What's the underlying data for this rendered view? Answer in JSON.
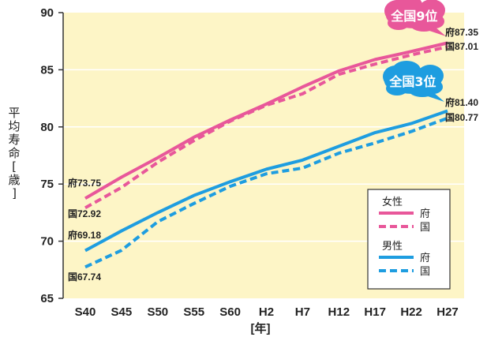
{
  "chart_data": {
    "type": "line",
    "categories": [
      "S40",
      "S45",
      "S50",
      "S55",
      "S60",
      "H2",
      "H7",
      "H12",
      "H17",
      "H22",
      "H27"
    ],
    "ylabel": "平均寿命[歳]",
    "xlabel": "[年]",
    "ylim": [
      65,
      90
    ],
    "yticks": [
      65,
      70,
      75,
      80,
      85,
      90
    ],
    "grid": true,
    "series": [
      {
        "name": "女性 府",
        "group": "female",
        "style": "solid",
        "color": "#e8579a",
        "values": [
          73.75,
          75.6,
          77.3,
          79.1,
          80.6,
          82.0,
          83.5,
          84.9,
          85.9,
          86.6,
          87.35
        ]
      },
      {
        "name": "女性 国",
        "group": "female",
        "style": "dashed",
        "color": "#e8579a",
        "values": [
          72.92,
          74.7,
          76.9,
          78.8,
          80.5,
          81.9,
          82.9,
          84.6,
          85.5,
          86.3,
          87.01
        ]
      },
      {
        "name": "男性 府",
        "group": "male",
        "style": "solid",
        "color": "#1e9de0",
        "values": [
          69.18,
          70.9,
          72.5,
          74.0,
          75.2,
          76.3,
          77.1,
          78.3,
          79.5,
          80.3,
          81.4
        ]
      },
      {
        "name": "男性 国",
        "group": "male",
        "style": "dashed",
        "color": "#1e9de0",
        "values": [
          67.74,
          69.2,
          71.7,
          73.3,
          74.8,
          75.9,
          76.4,
          77.7,
          78.6,
          79.6,
          80.77
        ]
      }
    ],
    "annotations": [
      {
        "text": "府73.75",
        "series": 0,
        "point": 0
      },
      {
        "text": "国72.92",
        "series": 1,
        "point": 0
      },
      {
        "text": "府69.18",
        "series": 2,
        "point": 0
      },
      {
        "text": "国67.74",
        "series": 3,
        "point": 0
      },
      {
        "text": "府87.35",
        "series": 0,
        "point": 10
      },
      {
        "text": "国87.01",
        "series": 1,
        "point": 10
      },
      {
        "text": "府81.40",
        "series": 2,
        "point": 10
      },
      {
        "text": "国80.77",
        "series": 3,
        "point": 10
      }
    ],
    "callouts": [
      {
        "text": "全国9位",
        "color": "#e8579a"
      },
      {
        "text": "全国3位",
        "color": "#1e9de0"
      }
    ],
    "legend": {
      "placement": "bottom-right",
      "groups": [
        {
          "title": "女性",
          "items": [
            {
              "label": "府",
              "series": 0
            },
            {
              "label": "国",
              "series": 1
            }
          ]
        },
        {
          "title": "男性",
          "items": [
            {
              "label": "府",
              "series": 2
            },
            {
              "label": "国",
              "series": 3
            }
          ]
        }
      ]
    },
    "colors": {
      "plot_background": "#fdf5c6",
      "grid": "#ffffff",
      "female": "#e8579a",
      "male": "#1e9de0"
    }
  }
}
